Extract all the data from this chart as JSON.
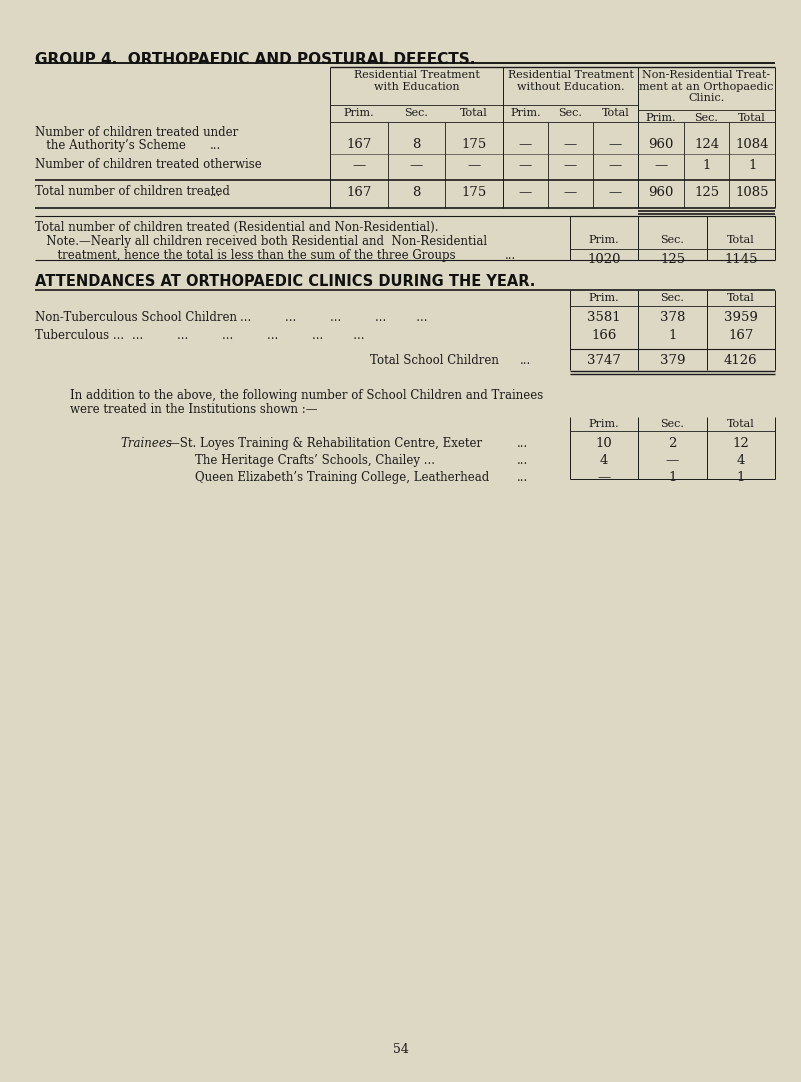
{
  "bg_color": "#ddd8c4",
  "title": "GROUP 4.  ORTHOPAEDIC AND POSTURAL DEFECTS.",
  "page_number": "54",
  "main_table": {
    "rows": [
      {
        "label_line1": "Number of children treated under",
        "label_line2": "   the Authority’s Scheme",
        "label_dots": "...",
        "values": [
          "167",
          "8",
          "175",
          "—",
          "—",
          "—",
          "960",
          "124",
          "1084"
        ]
      },
      {
        "label_line1": "Number of children treated otherwise",
        "label_line2": "",
        "label_dots": "",
        "values": [
          "—",
          "—",
          "—",
          "—",
          "—",
          "—",
          "—",
          "1",
          "1"
        ]
      }
    ],
    "total_row": {
      "label": "Total number of children treated",
      "values": [
        "167",
        "8",
        "175",
        "—",
        "—",
        "—",
        "960",
        "125",
        "1085"
      ]
    }
  },
  "note": {
    "line1": "Total number of children treated (Residential and Non-Residential).",
    "line2": "   Note.—Nearly all children received both Residential and  Non-Residential",
    "line3": "      treatment, hence the total is less than the sum of the three Groups",
    "headers": [
      "Prim.",
      "Sec.",
      "Total"
    ],
    "values": [
      "1020",
      "125",
      "1145"
    ]
  },
  "attendances_title": "ATTENDANCES AT ORTHOPAEDIC CLINICS DURING THE YEAR.",
  "attendances_headers": [
    "Prim.",
    "Sec.",
    "Total"
  ],
  "attendances_rows": [
    {
      "label": "Non-Tuberculous School Children",
      "values": [
        "3581",
        "378",
        "3959"
      ]
    },
    {
      "label": "Tuberculous ...",
      "values": [
        "166",
        "1",
        "167"
      ]
    }
  ],
  "attendances_total": {
    "label": "Total School Children",
    "values": [
      "3747",
      "379",
      "4126"
    ]
  },
  "addition_line1": "In addition to the above, the following number of School Children and Trainees",
  "addition_line2": "were treated in the Institutions shown :—",
  "trainees_headers": [
    "Prim.",
    "Sec.",
    "Total"
  ],
  "trainees_rows": [
    {
      "label_italic": "Trainees",
      "label_rest": "—St. Loyes Training & Rehabilitation Centre, Exeter",
      "values": [
        "10",
        "2",
        "12"
      ]
    },
    {
      "label_italic": "",
      "label_rest": "The Heritage Crafts’ Schools, Chailey ...",
      "values": [
        "4",
        "—",
        "4"
      ]
    },
    {
      "label_italic": "",
      "label_rest": "Queen Elizabeth’s Training College, Leatherhead",
      "values": [
        "—",
        "1",
        "1"
      ]
    }
  ]
}
